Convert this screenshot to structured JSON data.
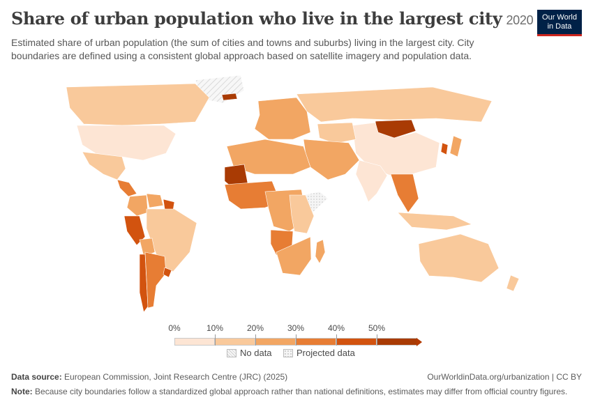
{
  "header": {
    "title": "Share of urban population who live in the largest city",
    "year": "2020",
    "subtitle": "Estimated share of urban population (the sum of cities and towns and suburbs) living in the largest city. City boundaries are defined using a consistent global approach based on satellite imagery and population data."
  },
  "logo": {
    "line1": "Our World",
    "line2": "in Data"
  },
  "legend": {
    "ticks": [
      "0%",
      "10%",
      "20%",
      "30%",
      "40%",
      "50%"
    ],
    "bins": [
      {
        "from": 0,
        "to": 10,
        "color": "#fde5d4"
      },
      {
        "from": 10,
        "to": 20,
        "color": "#f9c99b"
      },
      {
        "from": 20,
        "to": 30,
        "color": "#f2a663"
      },
      {
        "from": 30,
        "to": 40,
        "color": "#e77d34"
      },
      {
        "from": 40,
        "to": 50,
        "color": "#d2530f"
      },
      {
        "from": 50,
        "to": null,
        "color": "#a93b04"
      }
    ],
    "no_data_label": "No data",
    "projected_label": "Projected data"
  },
  "footer": {
    "source_label": "Data source:",
    "source_text": "European Commission, Joint Research Centre (JRC) (2025)",
    "url_text": "OurWorldinData.org/urbanization | CC BY",
    "note_label": "Note:",
    "note_text": "Because city boundaries follow a standardized global approach rather than national definitions, estimates may differ from official country figures."
  },
  "map_regions": [
    {
      "name": "Greenland",
      "bin": "nodata"
    },
    {
      "name": "Canada",
      "bin": 1
    },
    {
      "name": "United States",
      "bin": 0
    },
    {
      "name": "Mexico",
      "bin": 1
    },
    {
      "name": "Central America",
      "bin": 3
    },
    {
      "name": "Colombia",
      "bin": 2
    },
    {
      "name": "Venezuela",
      "bin": 2
    },
    {
      "name": "Guianas",
      "bin": 4
    },
    {
      "name": "Brazil",
      "bin": 1
    },
    {
      "name": "Peru",
      "bin": 4
    },
    {
      "name": "Bolivia",
      "bin": 2
    },
    {
      "name": "Chile",
      "bin": 4
    },
    {
      "name": "Argentina",
      "bin": 3
    },
    {
      "name": "Uruguay",
      "bin": 4
    },
    {
      "name": "Iceland",
      "bin": 5
    },
    {
      "name": "Europe",
      "bin": 2
    },
    {
      "name": "Russia",
      "bin": 1
    },
    {
      "name": "Mongolia",
      "bin": 5
    },
    {
      "name": "China",
      "bin": 0
    },
    {
      "name": "Kazakhstan",
      "bin": 1
    },
    {
      "name": "Middle East",
      "bin": 2
    },
    {
      "name": "India",
      "bin": 0
    },
    {
      "name": "Southeast Asia",
      "bin": 3
    },
    {
      "name": "Japan",
      "bin": 2
    },
    {
      "name": "Korea",
      "bin": 4
    },
    {
      "name": "Indonesia",
      "bin": 1
    },
    {
      "name": "Australia",
      "bin": 1
    },
    {
      "name": "New Zealand",
      "bin": 1
    },
    {
      "name": "North Africa",
      "bin": 2
    },
    {
      "name": "Mauritania",
      "bin": 5
    },
    {
      "name": "West Africa",
      "bin": 3
    },
    {
      "name": "Central Africa",
      "bin": 2
    },
    {
      "name": "Somalia",
      "bin": "projected"
    },
    {
      "name": "East Africa",
      "bin": 1
    },
    {
      "name": "Angola",
      "bin": 3
    },
    {
      "name": "Southern Africa",
      "bin": 2
    },
    {
      "name": "Madagascar",
      "bin": 2
    }
  ]
}
